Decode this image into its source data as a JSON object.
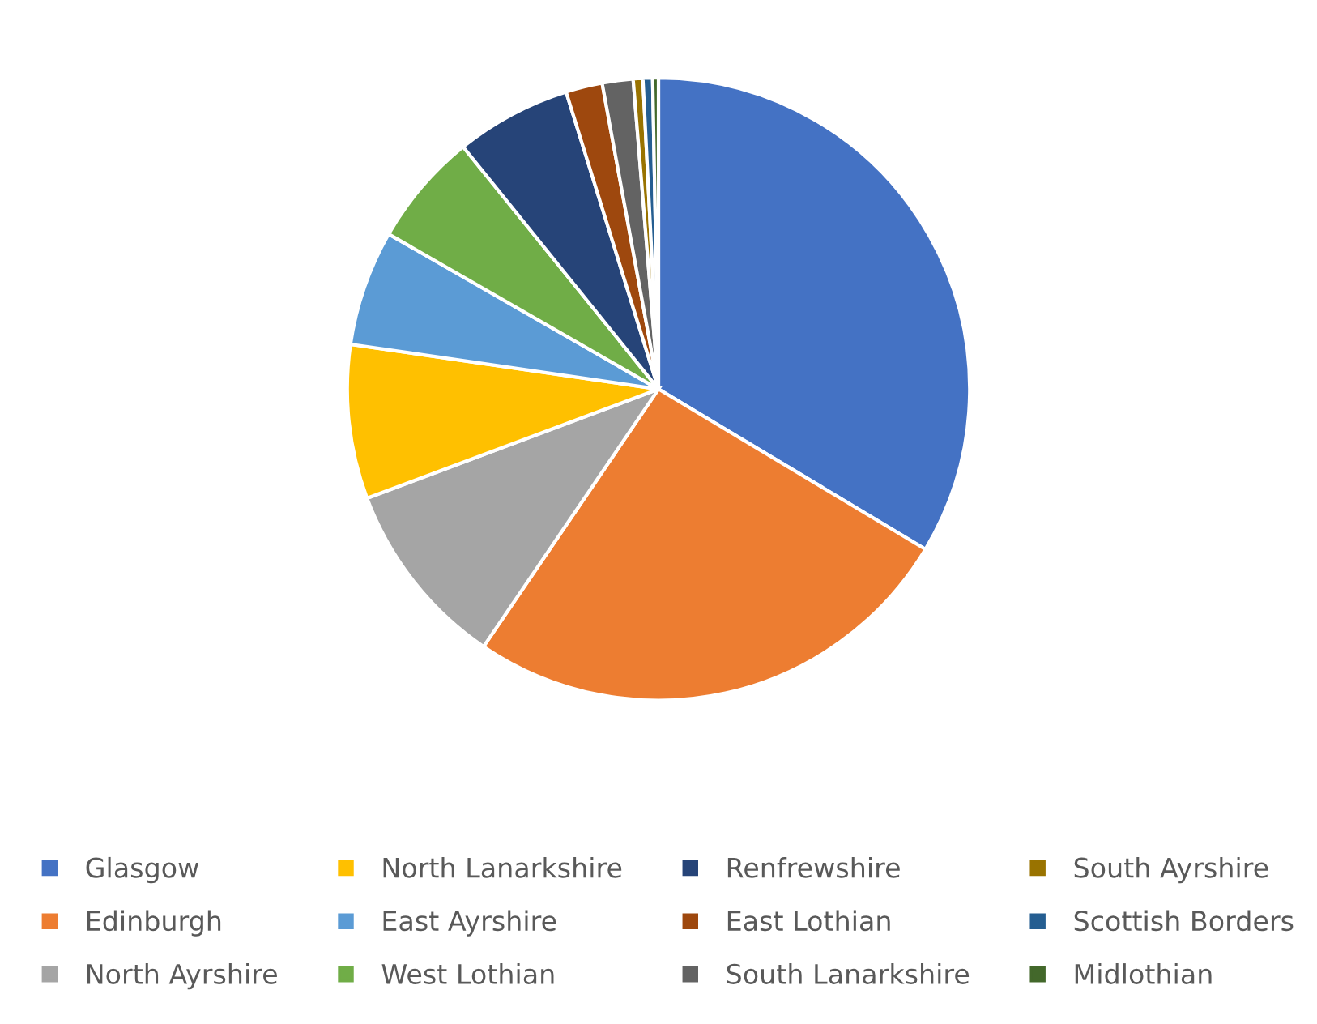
{
  "chart_data": {
    "type": "pie",
    "categories": [
      "Glasgow",
      "Edinburgh",
      "North Ayrshire",
      "North Lanarkshire",
      "East Ayrshire",
      "West Lothian",
      "Renfrewshire",
      "East Lothian",
      "South Lanarkshire",
      "South Ayrshire",
      "Scottish Borders",
      "Midlothian"
    ],
    "values": [
      33.6,
      25.9,
      9.8,
      8.0,
      6.0,
      5.9,
      6.0,
      1.9,
      1.6,
      0.5,
      0.5,
      0.3
    ],
    "colors": [
      "#4472c4",
      "#ed7d31",
      "#a5a5a5",
      "#ffc000",
      "#5b9bd5",
      "#70ad47",
      "#264478",
      "#9e480e",
      "#636363",
      "#997300",
      "#255e91",
      "#43682b"
    ],
    "legend": "bottom"
  }
}
